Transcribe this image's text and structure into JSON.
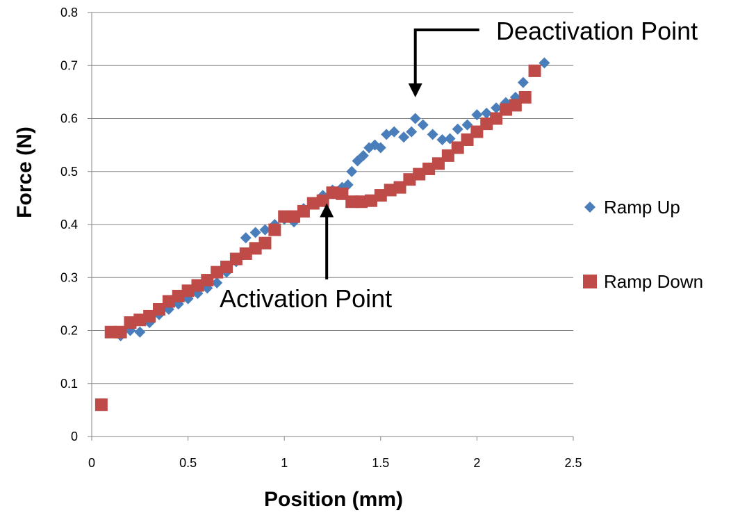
{
  "chart_data": {
    "type": "scatter",
    "title": "",
    "xlabel": "Position (mm)",
    "ylabel": "Force (N)",
    "xlim": [
      0,
      2.5
    ],
    "ylim": [
      0,
      0.8
    ],
    "x_ticks": [
      "0",
      "0.5",
      "1",
      "1.5",
      "2",
      "2.5"
    ],
    "y_ticks": [
      "0",
      "0.1",
      "0.2",
      "0.3",
      "0.4",
      "0.5",
      "0.6",
      "0.7",
      "0.8"
    ],
    "grid": "horizontal",
    "legend": "right",
    "annotations": [
      {
        "text": "Deactivation Point",
        "x": 1.68,
        "y": 0.64
      },
      {
        "text": "Activation Point",
        "x": 1.22,
        "y": 0.44
      }
    ],
    "series": [
      {
        "name": "Ramp Up",
        "color": "#4a7ebb",
        "marker": "diamond",
        "points": [
          [
            0.15,
            0.19
          ],
          [
            0.2,
            0.2
          ],
          [
            0.25,
            0.197
          ],
          [
            0.3,
            0.215
          ],
          [
            0.35,
            0.23
          ],
          [
            0.4,
            0.24
          ],
          [
            0.45,
            0.25
          ],
          [
            0.5,
            0.26
          ],
          [
            0.55,
            0.27
          ],
          [
            0.6,
            0.28
          ],
          [
            0.65,
            0.29
          ],
          [
            0.7,
            0.31
          ],
          [
            0.75,
            0.33
          ],
          [
            0.8,
            0.375
          ],
          [
            0.85,
            0.385
          ],
          [
            0.9,
            0.39
          ],
          [
            0.95,
            0.4
          ],
          [
            1.0,
            0.41
          ],
          [
            1.05,
            0.405
          ],
          [
            1.1,
            0.43
          ],
          [
            1.15,
            0.44
          ],
          [
            1.2,
            0.455
          ],
          [
            1.25,
            0.465
          ],
          [
            1.3,
            0.47
          ],
          [
            1.33,
            0.475
          ],
          [
            1.35,
            0.5
          ],
          [
            1.38,
            0.52
          ],
          [
            1.41,
            0.53
          ],
          [
            1.44,
            0.545
          ],
          [
            1.47,
            0.55
          ],
          [
            1.5,
            0.545
          ],
          [
            1.53,
            0.57
          ],
          [
            1.57,
            0.575
          ],
          [
            1.62,
            0.565
          ],
          [
            1.66,
            0.575
          ],
          [
            1.68,
            0.6
          ],
          [
            1.72,
            0.588
          ],
          [
            1.77,
            0.57
          ],
          [
            1.82,
            0.56
          ],
          [
            1.86,
            0.562
          ],
          [
            1.9,
            0.58
          ],
          [
            1.95,
            0.588
          ],
          [
            2.0,
            0.607
          ],
          [
            2.05,
            0.61
          ],
          [
            2.1,
            0.62
          ],
          [
            2.15,
            0.63
          ],
          [
            2.2,
            0.64
          ],
          [
            2.24,
            0.668
          ],
          [
            2.3,
            0.69
          ],
          [
            2.35,
            0.705
          ]
        ]
      },
      {
        "name": "Ramp Down",
        "color": "#be4b48",
        "marker": "square",
        "points": [
          [
            0.05,
            0.06
          ],
          [
            0.1,
            0.197
          ],
          [
            0.15,
            0.197
          ],
          [
            0.2,
            0.215
          ],
          [
            0.25,
            0.22
          ],
          [
            0.3,
            0.227
          ],
          [
            0.35,
            0.24
          ],
          [
            0.4,
            0.255
          ],
          [
            0.45,
            0.265
          ],
          [
            0.5,
            0.275
          ],
          [
            0.55,
            0.285
          ],
          [
            0.6,
            0.295
          ],
          [
            0.65,
            0.31
          ],
          [
            0.7,
            0.32
          ],
          [
            0.75,
            0.335
          ],
          [
            0.8,
            0.345
          ],
          [
            0.85,
            0.355
          ],
          [
            0.9,
            0.365
          ],
          [
            0.95,
            0.39
          ],
          [
            1.0,
            0.415
          ],
          [
            1.05,
            0.415
          ],
          [
            1.1,
            0.425
          ],
          [
            1.15,
            0.44
          ],
          [
            1.2,
            0.445
          ],
          [
            1.25,
            0.46
          ],
          [
            1.3,
            0.458
          ],
          [
            1.35,
            0.443
          ],
          [
            1.4,
            0.443
          ],
          [
            1.45,
            0.445
          ],
          [
            1.5,
            0.455
          ],
          [
            1.55,
            0.465
          ],
          [
            1.6,
            0.47
          ],
          [
            1.65,
            0.485
          ],
          [
            1.7,
            0.495
          ],
          [
            1.75,
            0.505
          ],
          [
            1.8,
            0.515
          ],
          [
            1.85,
            0.53
          ],
          [
            1.9,
            0.545
          ],
          [
            1.95,
            0.56
          ],
          [
            2.0,
            0.575
          ],
          [
            2.05,
            0.59
          ],
          [
            2.1,
            0.6
          ],
          [
            2.15,
            0.617
          ],
          [
            2.2,
            0.625
          ],
          [
            2.25,
            0.64
          ],
          [
            2.3,
            0.69
          ]
        ]
      }
    ]
  }
}
